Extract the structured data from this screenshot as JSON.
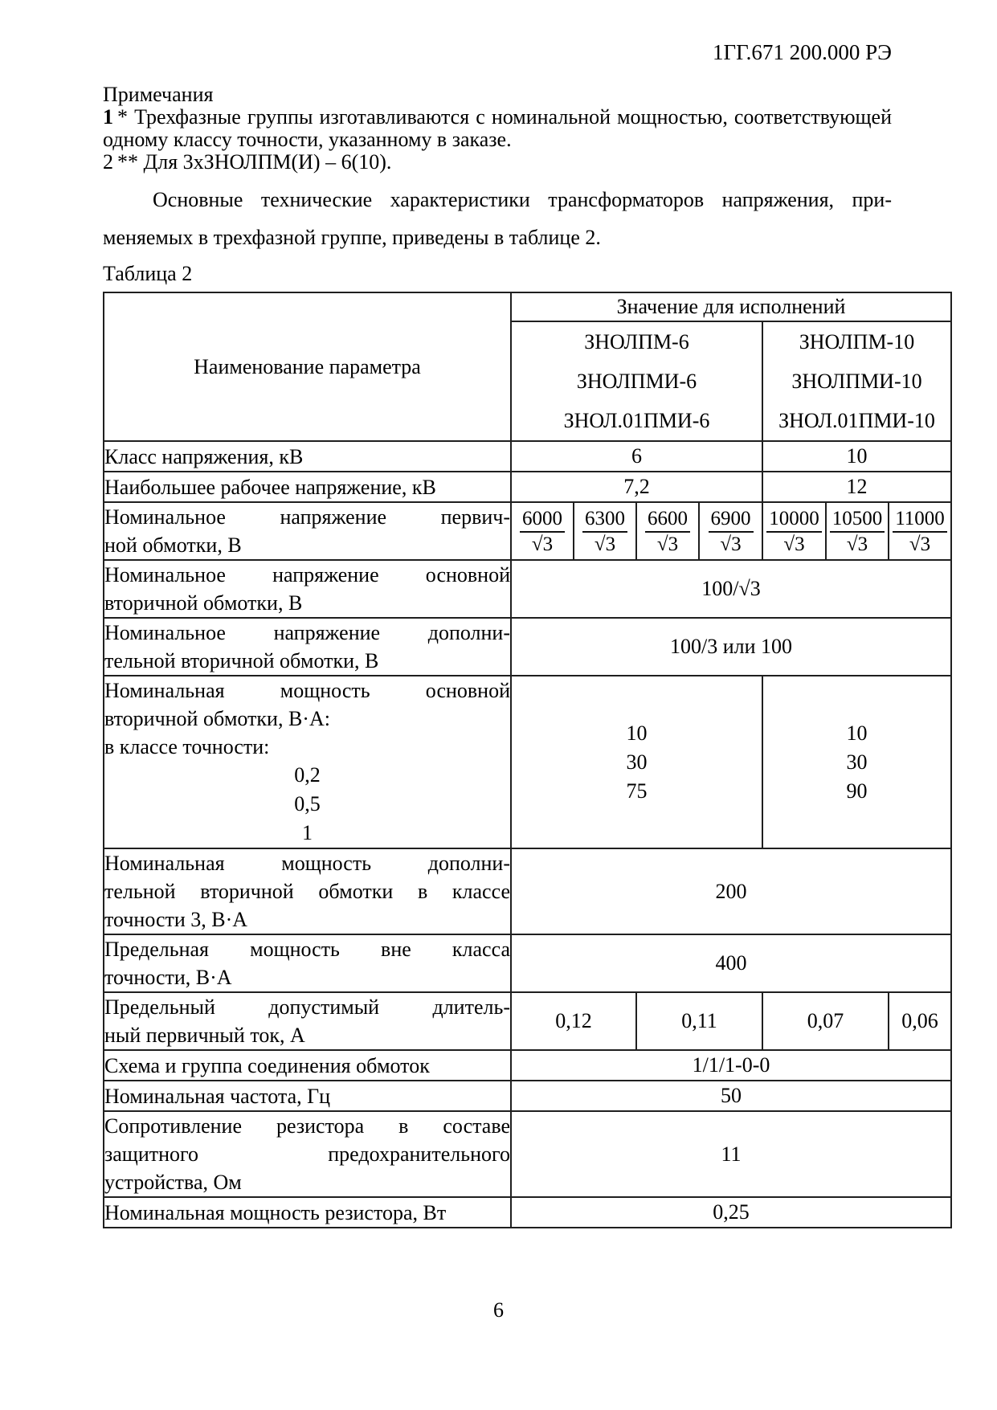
{
  "doc": {
    "number": "1ГГ.671 200.000 РЭ",
    "page_number": "6"
  },
  "notes": {
    "title": "Примечания",
    "note1_prefix": "1",
    "note1_text": "* Трехфазные группы изготавливаются с номинальной мощностью, соответствующей одному классу точности, указанному в заказе.",
    "note2_prefix": "2",
    "note2_text": "** Для 3хЗНОЛПМ(И) – 6(10)."
  },
  "intro": {
    "lines": [
      "Основные технические характеристики трансформаторов напряжения, при-",
      "меняемых в трехфазной группе, приведены в таблице 2."
    ]
  },
  "table": {
    "caption": "Таблица 2",
    "header": {
      "param": "Наименование параметра",
      "values_title": "Значение для исполнений",
      "group6": [
        "ЗНОЛПМ-6",
        "ЗНОЛПМИ-6",
        "ЗНОЛ.01ПМИ-6"
      ],
      "group10": [
        "ЗНОЛПМ-10",
        "ЗНОЛПМИ-10",
        "ЗНОЛ.01ПМИ-10"
      ]
    },
    "rows": {
      "voltage_class": {
        "label": "Класс напряжения, кВ",
        "v6": "6",
        "v10": "10"
      },
      "max_voltage": {
        "label": "Наибольшее рабочее напряжение, кВ",
        "v6": "7,2",
        "v10": "12"
      },
      "primary_voltage": {
        "label_lines": [
          "Номинальное напряжение первич-",
          "ной обмотки, В"
        ],
        "fractions": [
          {
            "num": "6000",
            "den": "√3"
          },
          {
            "num": "6300",
            "den": "√3"
          },
          {
            "num": "6600",
            "den": "√3"
          },
          {
            "num": "6900",
            "den": "√3"
          },
          {
            "num": "10000",
            "den": "√3"
          },
          {
            "num": "10500",
            "den": "√3"
          },
          {
            "num": "11000",
            "den": "√3"
          }
        ]
      },
      "secondary_main_voltage": {
        "label_lines": [
          "Номинальное напряжение основной",
          "вторичной обмотки, В"
        ],
        "value": "100/√3"
      },
      "secondary_aux_voltage": {
        "label_lines": [
          "Номинальное напряжение дополни-",
          "тельной вторичной обмотки, В"
        ],
        "value": "100/3 или 100"
      },
      "rated_power_main": {
        "label_lines": [
          "Номинальная мощность основной",
          "вторичной обмотки, В·А:",
          "в классе точности:"
        ],
        "class_values": [
          "0,2",
          "0,5",
          "1"
        ],
        "v6_lines": [
          "10",
          "30",
          "75"
        ],
        "v10_lines": [
          "10",
          "30",
          "90"
        ]
      },
      "rated_power_aux": {
        "label_lines": [
          "Номинальная мощность дополни-",
          "тельной вторичной обмотки в классе",
          "точности 3, В·А"
        ],
        "value": "200"
      },
      "limit_power": {
        "label_lines": [
          "Предельная мощность вне класса",
          "точности, В·А"
        ],
        "value": "400"
      },
      "limit_current": {
        "label_lines": [
          "Предельный допустимый длитель-",
          "ный первичный ток, А"
        ],
        "values": [
          "0,12",
          "0,11",
          "0,07",
          "0,06"
        ]
      },
      "winding_scheme": {
        "label": "Схема и группа соединения обмоток",
        "value": "1/1/1-0-0"
      },
      "frequency": {
        "label": "Номинальная частота, Гц",
        "value": "50"
      },
      "resistor_resistance": {
        "label_lines": [
          "Сопротивление резистора в составе",
          "защитного предохранительного",
          "устройства, Ом"
        ],
        "value": "11"
      },
      "resistor_power": {
        "label": "Номинальная мощность резистора, Вт",
        "value": "0,25"
      }
    }
  }
}
